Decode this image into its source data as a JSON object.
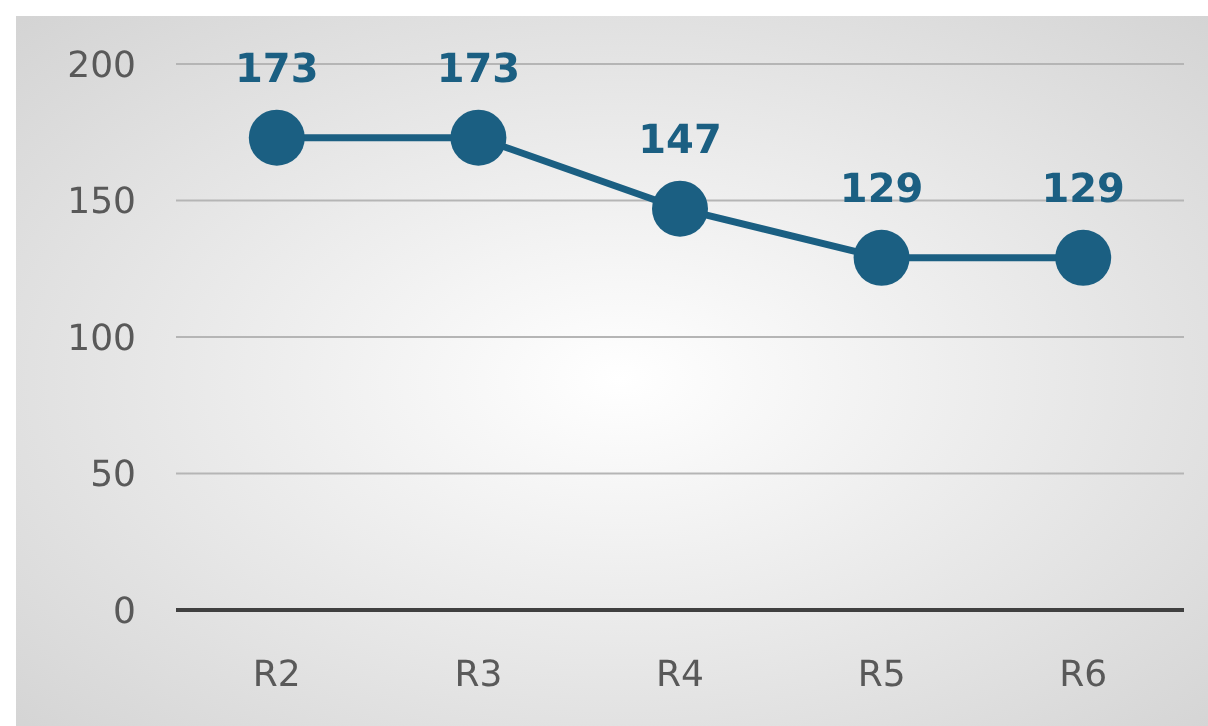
{
  "chart_data": {
    "type": "line",
    "categories": [
      "R2",
      "R3",
      "R4",
      "R5",
      "R6"
    ],
    "series": [
      {
        "color": "#1b5f82",
        "values": [
          173,
          173,
          147,
          129,
          129
        ]
      }
    ],
    "ylim": [
      0,
      200
    ],
    "yticks": [
      0,
      50,
      100,
      150,
      200
    ],
    "grid": "y",
    "marker": "circle",
    "line_style": "solid",
    "data_labels": true
  }
}
